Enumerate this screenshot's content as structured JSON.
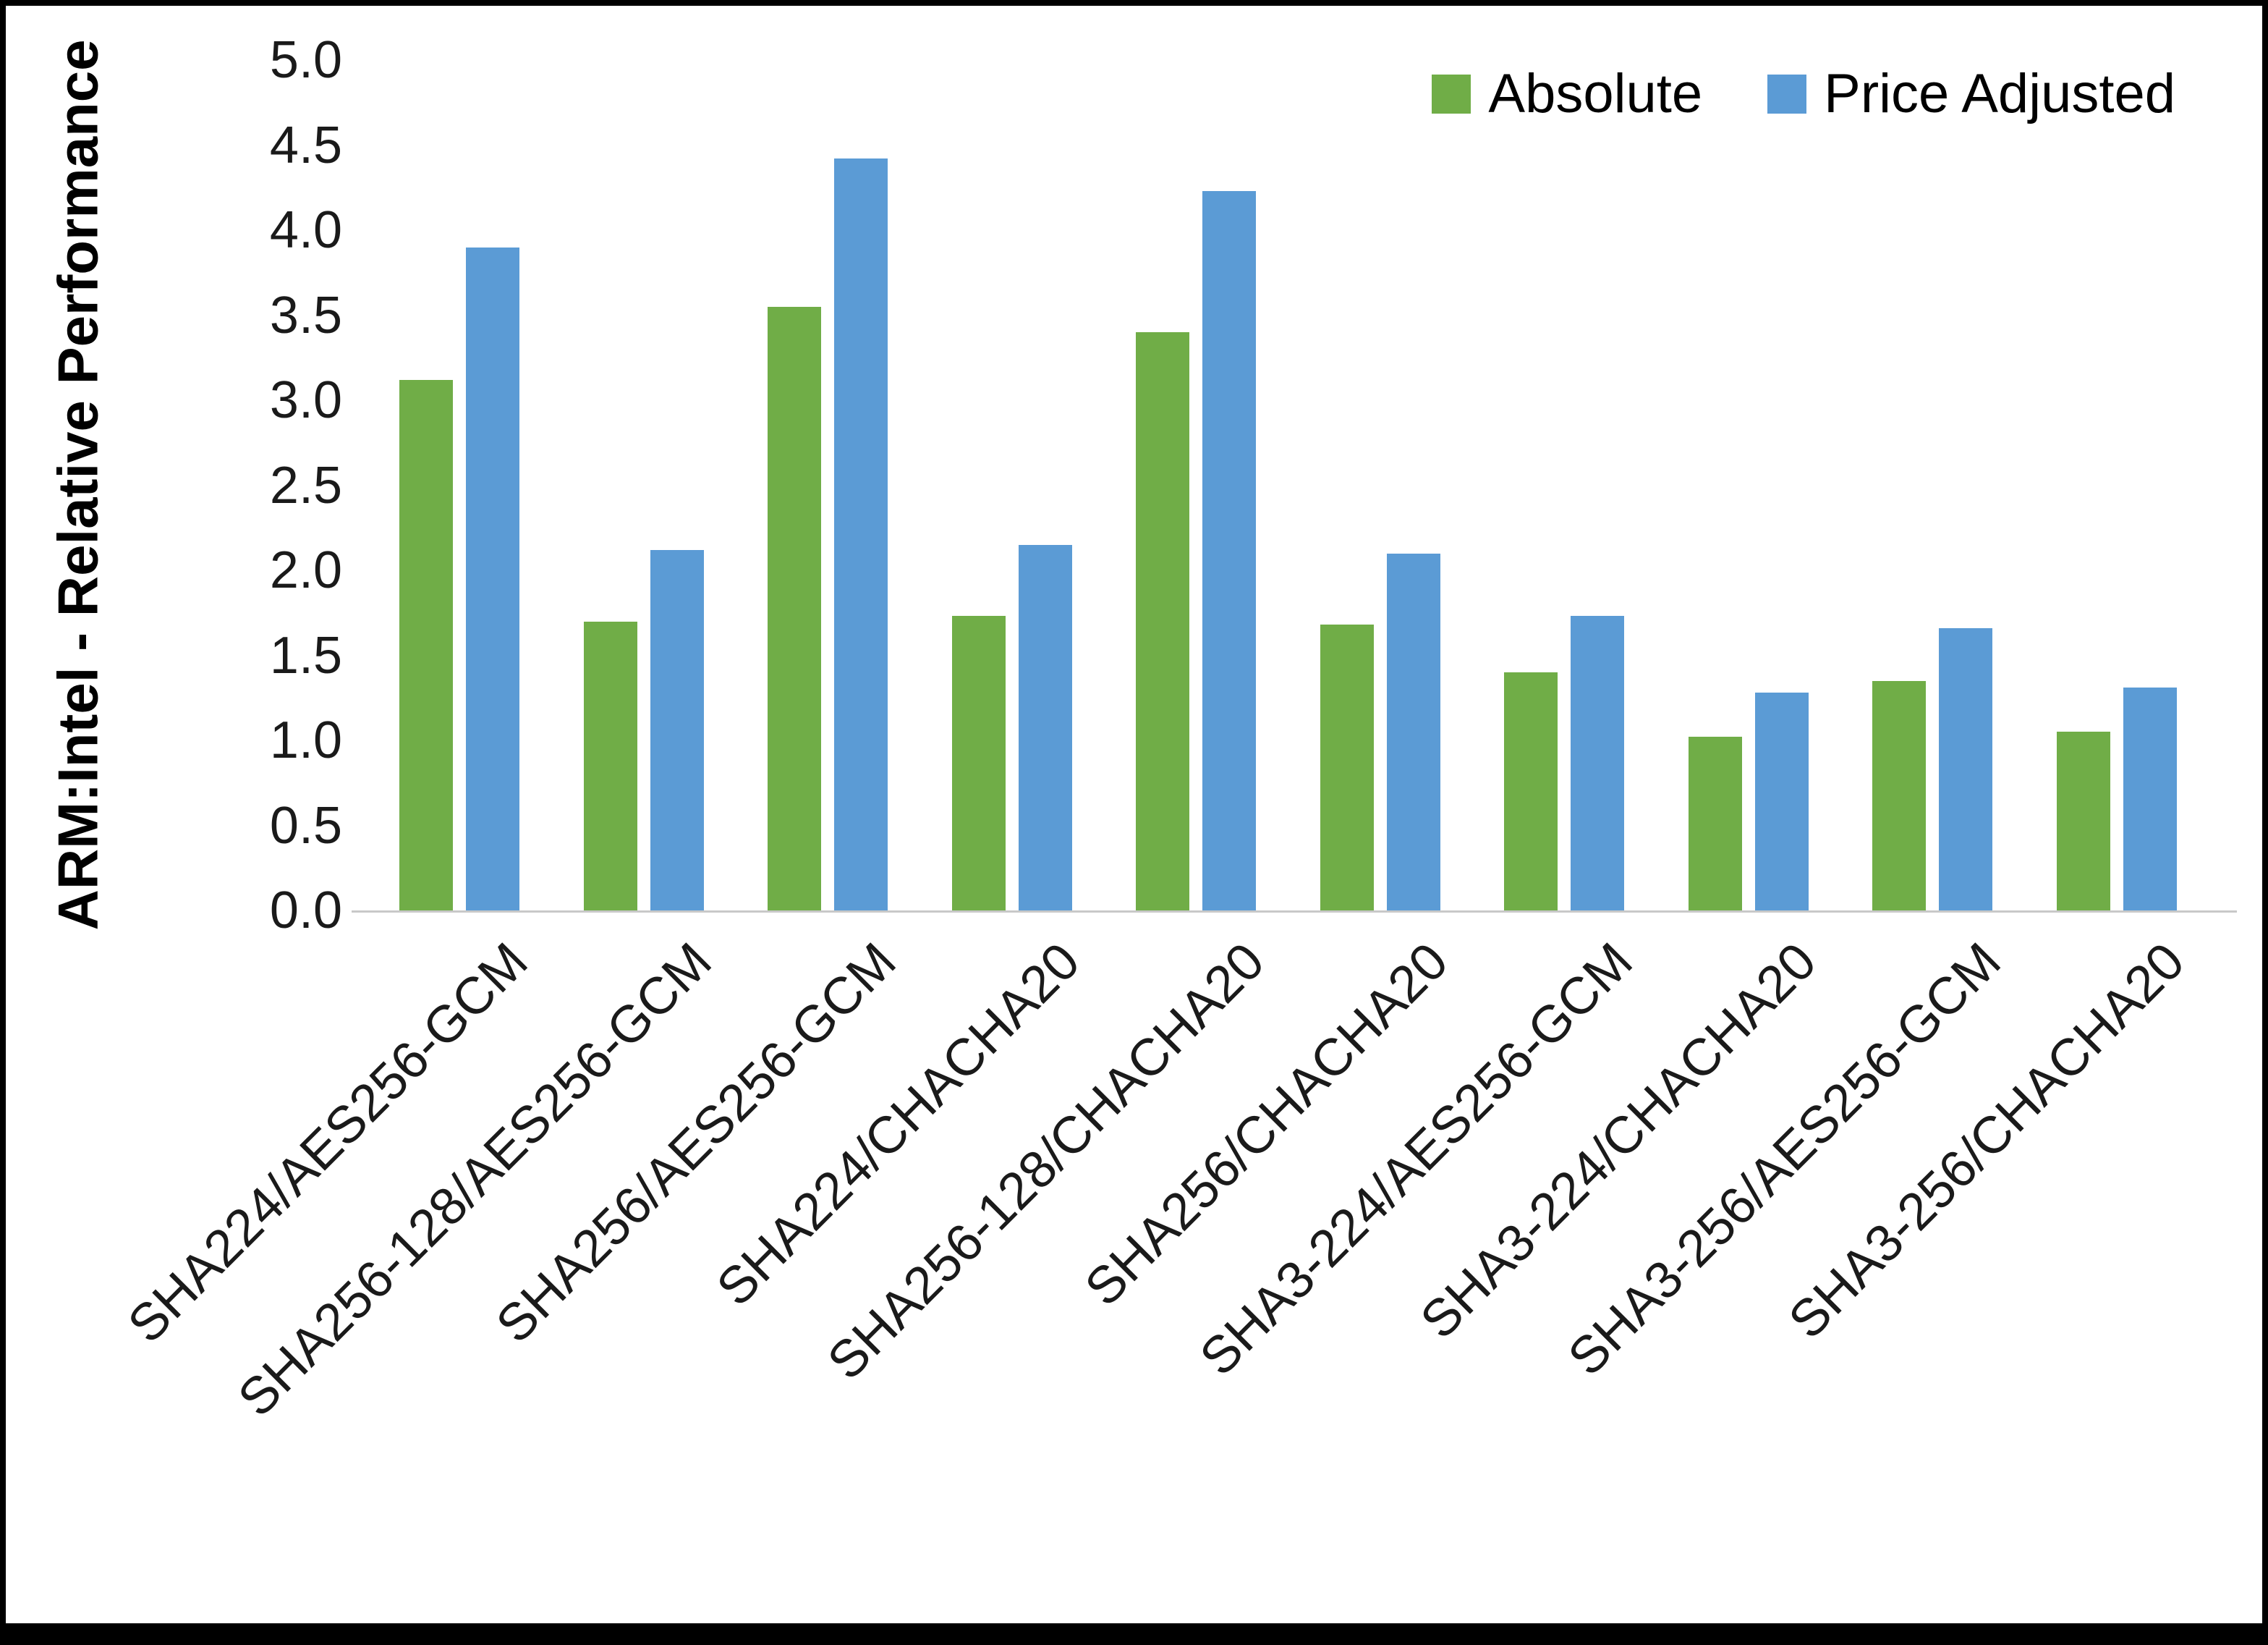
{
  "chart_data": {
    "type": "bar",
    "title": "",
    "xlabel": "",
    "ylabel": "ARM:Intel - Relative Performance",
    "ylim": [
      0,
      5
    ],
    "ytick_step": 0.5,
    "grid": false,
    "legend_position": "top-right",
    "categories": [
      "SHA224/AES256-GCM",
      "SHA256-128/AES256-GCM",
      "SHA256/AES256-GCM",
      "SHA224/CHACHA20",
      "SHA256-128/CHACHA20",
      "SHA256/CHACHA20",
      "SHA3-224/AES256-GCM",
      "SHA3-224/CHACHA20",
      "SHA3-256/AES256-GCM",
      "SHA3-256/CHACHA20"
    ],
    "series": [
      {
        "name": "Absolute",
        "color": "#70AD47",
        "values": [
          3.12,
          1.7,
          3.55,
          1.73,
          3.4,
          1.68,
          1.4,
          1.02,
          1.35,
          1.05
        ]
      },
      {
        "name": "Price Adjusted",
        "color": "#5B9BD5",
        "values": [
          3.9,
          2.12,
          4.42,
          2.15,
          4.23,
          2.1,
          1.73,
          1.28,
          1.66,
          1.31
        ]
      }
    ]
  },
  "colors": {
    "axis_line": "#C8C8C8",
    "text": "#1A1A1A",
    "background": "#FFFFFF",
    "border": "#000000"
  }
}
